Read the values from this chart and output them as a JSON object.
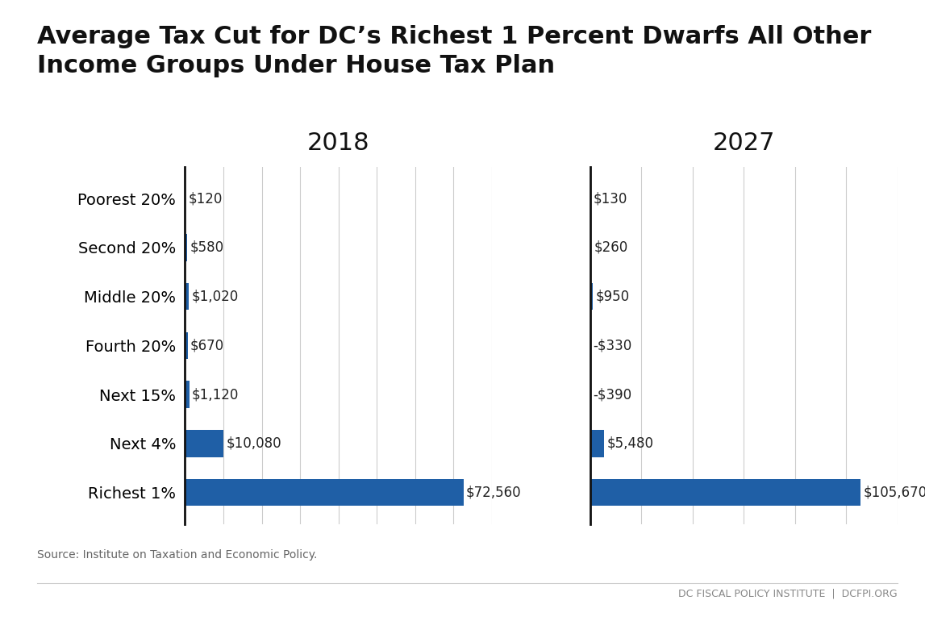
{
  "title": "Average Tax Cut for DC’s Richest 1 Percent Dwarfs All Other\nIncome Groups Under House Tax Plan",
  "categories": [
    "Poorest 20%",
    "Second 20%",
    "Middle 20%",
    "Fourth 20%",
    "Next 15%",
    "Next 4%",
    "Richest 1%"
  ],
  "values_2018": [
    120,
    580,
    1020,
    670,
    1120,
    10080,
    72560
  ],
  "values_2027": [
    130,
    260,
    950,
    -330,
    -390,
    5480,
    105670
  ],
  "labels_2018": [
    "$120",
    "$580",
    "$1,020",
    "$670",
    "$1,120",
    "$10,080",
    "$72,560"
  ],
  "labels_2027": [
    "$130",
    "$260",
    "$950",
    "-$330",
    "-$390",
    "$5,480",
    "$105,670"
  ],
  "bar_color": "#1f5fa6",
  "year_2018": "2018",
  "year_2027": "2027",
  "source_text": "Source: Institute on Taxation and Economic Policy.",
  "footer_text": "DC FISCAL POLICY INSTITUTE  |  DCFPI.ORG",
  "background_color": "#ffffff",
  "title_fontsize": 22,
  "bar_label_fontsize": 12,
  "category_fontsize": 14,
  "year_fontsize": 22
}
